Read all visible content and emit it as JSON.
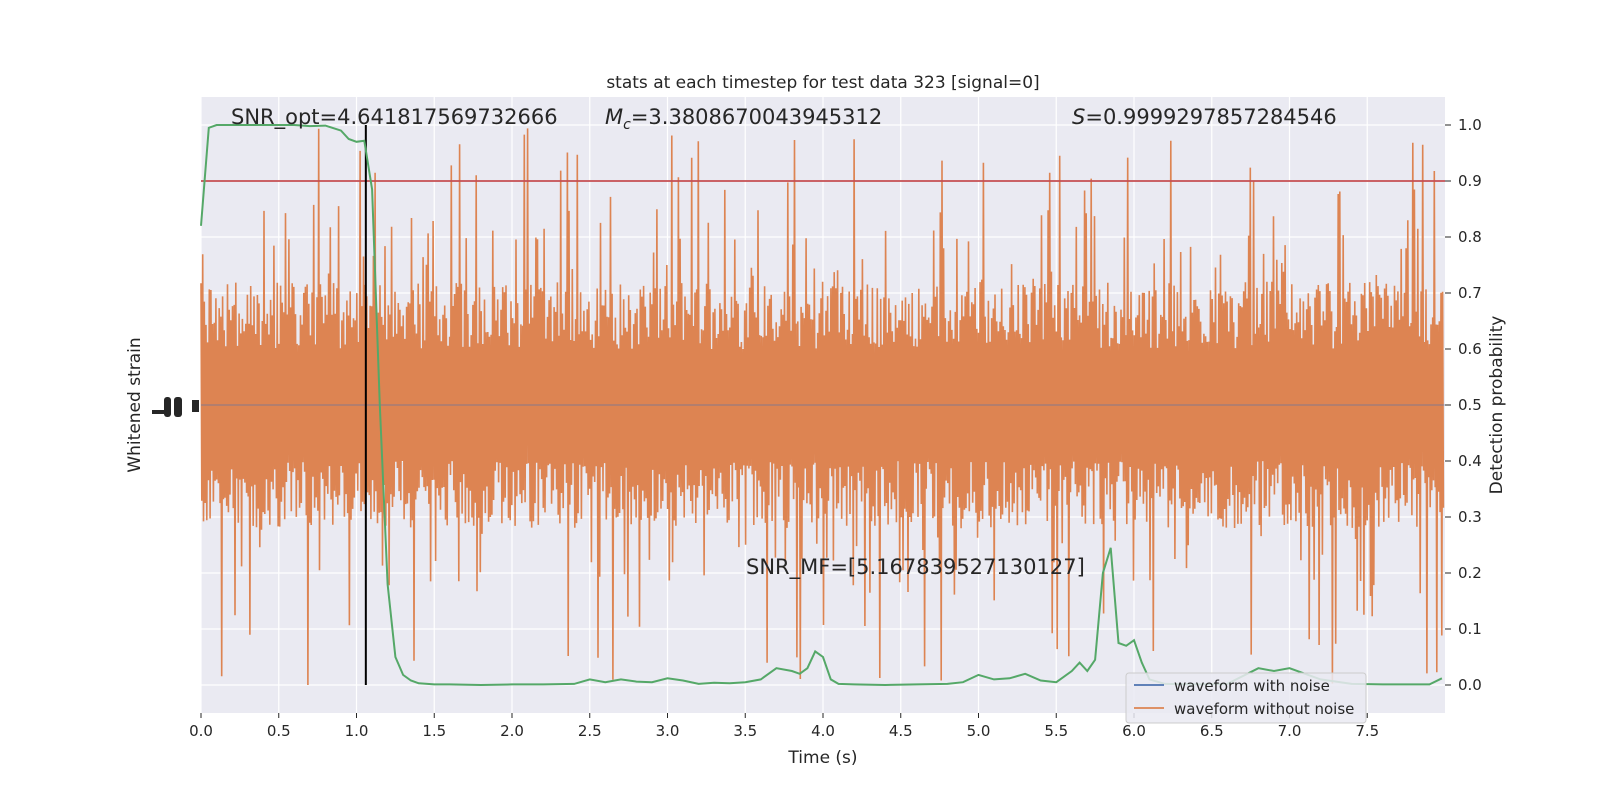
{
  "chart_data": {
    "type": "line",
    "title": "stats at each timestep for test data 323 [signal=0]",
    "xlabel": "Time (s)",
    "ylabel_left": "Whitened strain",
    "ylabel_right": "Detection probability",
    "xlim": [
      0.0,
      8.0
    ],
    "ylim_right": [
      -0.05,
      1.05
    ],
    "x_ticks": [
      0.0,
      0.5,
      1.0,
      1.5,
      2.0,
      2.5,
      3.0,
      3.5,
      4.0,
      4.5,
      5.0,
      5.5,
      6.0,
      6.5,
      7.0,
      7.5
    ],
    "x_tick_labels": [
      "0.0",
      "0.5",
      "1.0",
      "1.5",
      "2.0",
      "2.5",
      "3.0",
      "3.5",
      "4.0",
      "4.5",
      "5.0",
      "5.5",
      "6.0",
      "6.5",
      "7.0",
      "7.5"
    ],
    "y_right_ticks": [
      0.0,
      0.1,
      0.2,
      0.3,
      0.4,
      0.5,
      0.6,
      0.7,
      0.8,
      0.9,
      1.0
    ],
    "y_right_tick_labels": [
      "0.0",
      "0.1",
      "0.2",
      "0.3",
      "0.4",
      "0.5",
      "0.6",
      "0.7",
      "0.8",
      "0.9",
      "1.0"
    ],
    "grid": true,
    "legend_placement": "lower-right",
    "annotations": {
      "snr_opt": "SNR_opt=4.641817569732666",
      "mc_symbol": "M",
      "mc_subscript": "c",
      "mc_value": "=3.3808670043945312",
      "s_symbol": "S",
      "s_value": "=0.9999297857284546",
      "snr_mf": "SNR_MF=[5.167839527130127]"
    },
    "threshold": 0.9,
    "marker_time": 1.06,
    "series": [
      {
        "name": "waveform with noise",
        "color": "#4c72b0",
        "kind": "strain",
        "note_values": "flat at 0"
      },
      {
        "name": "waveform without noise",
        "color": "#dd8452",
        "kind": "strain",
        "envelope": {
          "center": 0.5,
          "dense_half_width": 0.2,
          "spike_max": 1.0,
          "spike_min": 0.0
        }
      },
      {
        "color": "#55a868",
        "kind": "probability",
        "x": [
          0.0,
          0.05,
          0.1,
          0.2,
          0.3,
          0.4,
          0.5,
          0.6,
          0.7,
          0.8,
          0.9,
          0.95,
          1.0,
          1.05,
          1.1,
          1.15,
          1.2,
          1.25,
          1.3,
          1.35,
          1.4,
          1.5,
          1.6,
          1.8,
          2.0,
          2.2,
          2.4,
          2.5,
          2.6,
          2.7,
          2.8,
          2.9,
          3.0,
          3.1,
          3.2,
          3.3,
          3.4,
          3.5,
          3.6,
          3.7,
          3.8,
          3.85,
          3.9,
          3.95,
          4.0,
          4.05,
          4.1,
          4.2,
          4.4,
          4.6,
          4.8,
          4.9,
          5.0,
          5.1,
          5.2,
          5.3,
          5.4,
          5.5,
          5.6,
          5.65,
          5.7,
          5.75,
          5.8,
          5.85,
          5.9,
          5.95,
          6.0,
          6.05,
          6.1,
          6.2,
          6.4,
          6.6,
          6.8,
          6.9,
          7.0,
          7.2,
          7.4,
          7.6,
          7.8,
          7.9,
          7.98
        ],
        "values": [
          0.82,
          0.995,
          1.0,
          1.0,
          1.0,
          1.0,
          1.0,
          1.0,
          0.998,
          0.999,
          0.99,
          0.975,
          0.97,
          0.972,
          0.885,
          0.5,
          0.18,
          0.05,
          0.018,
          0.008,
          0.003,
          0.001,
          0.001,
          0.0,
          0.001,
          0.001,
          0.002,
          0.01,
          0.005,
          0.01,
          0.006,
          0.005,
          0.012,
          0.008,
          0.002,
          0.004,
          0.003,
          0.005,
          0.01,
          0.03,
          0.025,
          0.02,
          0.03,
          0.06,
          0.05,
          0.01,
          0.002,
          0.001,
          0.0,
          0.001,
          0.002,
          0.005,
          0.018,
          0.01,
          0.012,
          0.02,
          0.008,
          0.005,
          0.025,
          0.04,
          0.025,
          0.045,
          0.2,
          0.245,
          0.075,
          0.07,
          0.08,
          0.04,
          0.01,
          0.002,
          0.001,
          0.002,
          0.03,
          0.025,
          0.03,
          0.01,
          0.002,
          0.001,
          0.001,
          0.001,
          0.012
        ]
      }
    ],
    "threshold_color": "#c44e52",
    "marker_color": "#000000",
    "plot_bg": "#eaeaf2",
    "grid_color": "#ffffff"
  },
  "left_axis_glyph_text": "1e-20"
}
